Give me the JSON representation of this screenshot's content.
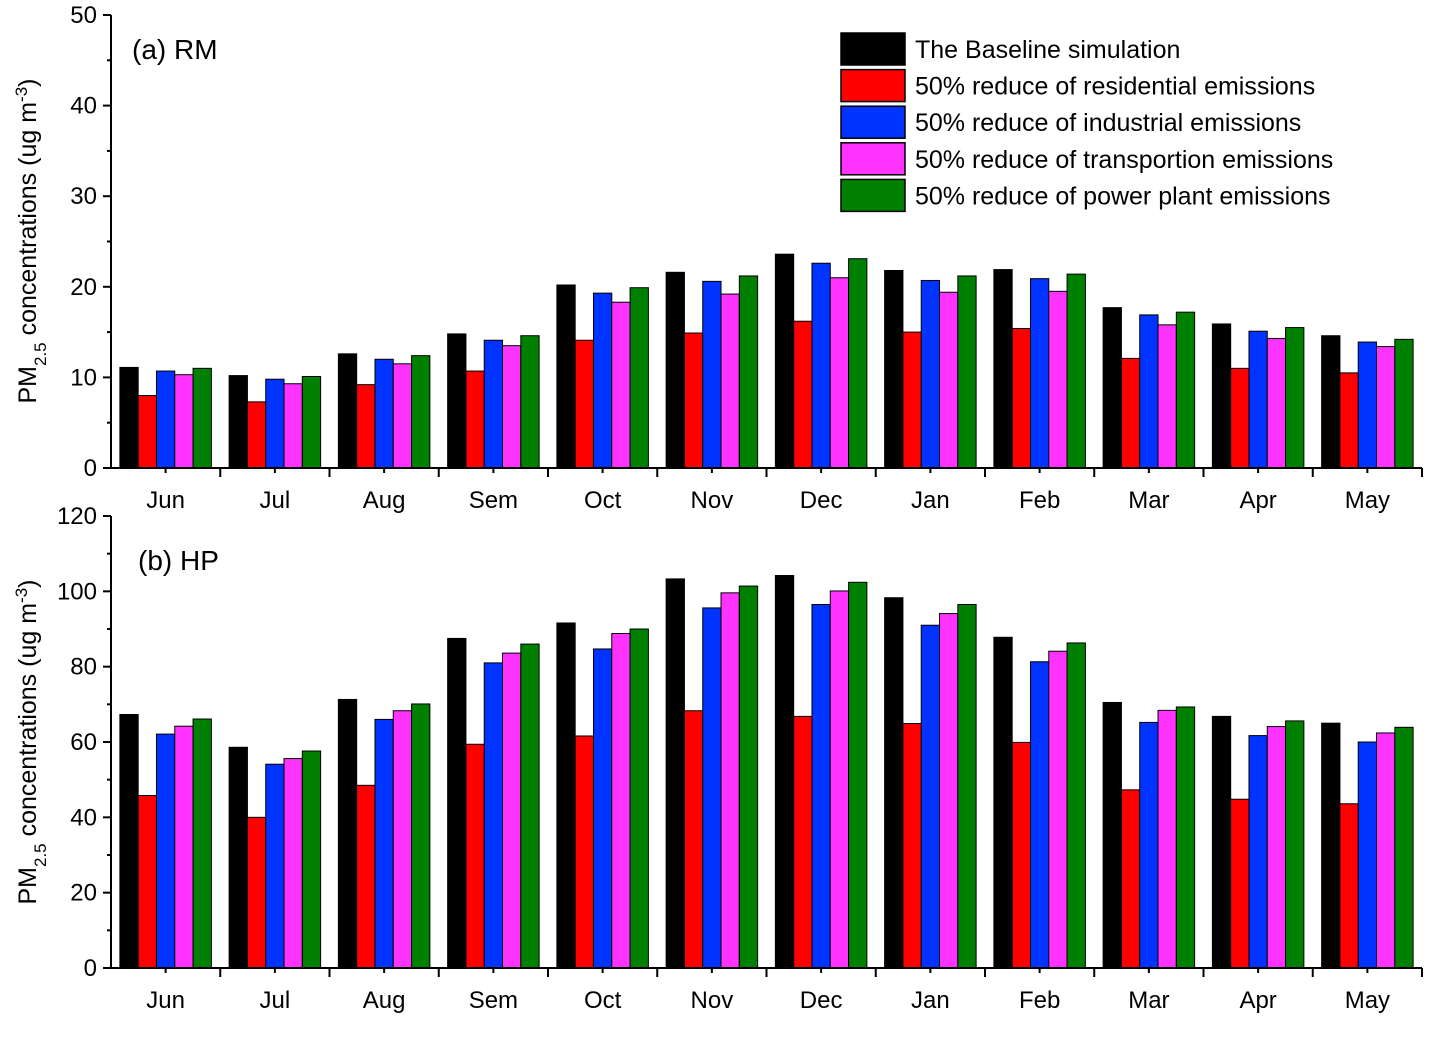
{
  "legend": {
    "entries": [
      {
        "label": "The Baseline simulation",
        "color": "#000000"
      },
      {
        "label": "50% reduce of residential emissions",
        "color": "#ff0000"
      },
      {
        "label": "50% reduce of industrial emissions",
        "color": "#0033ff"
      },
      {
        "label": "50% reduce of transportion emissions",
        "color": "#ff33ff"
      },
      {
        "label": "50% reduce of power plant emissions",
        "color": "#008000"
      }
    ],
    "placement": "top-right of panel (a)"
  },
  "chart_data": [
    {
      "type": "bar",
      "panel_label": "(a) RM",
      "ylabel": {
        "main": "PM",
        "sub": "2.5",
        "rest": " concentrations (ug m",
        "sup": "-3",
        "close": ")"
      },
      "xlabel": "",
      "ylim": [
        0,
        50
      ],
      "yticks": [
        0,
        10,
        20,
        30,
        40,
        50
      ],
      "categories": [
        "Jun",
        "Jul",
        "Aug",
        "Sem",
        "Oct",
        "Nov",
        "Dec",
        "Jan",
        "Feb",
        "Mar",
        "Apr",
        "May"
      ],
      "series": [
        {
          "name": "The Baseline simulation",
          "color": "#000000",
          "values": [
            11.1,
            10.2,
            12.6,
            14.8,
            20.2,
            21.6,
            23.6,
            21.8,
            21.9,
            17.7,
            15.9,
            14.6
          ]
        },
        {
          "name": "50% reduce of residential emissions",
          "color": "#ff0000",
          "values": [
            8.0,
            7.3,
            9.2,
            10.7,
            14.1,
            14.9,
            16.2,
            15.0,
            15.4,
            12.1,
            11.0,
            10.5
          ]
        },
        {
          "name": "50% reduce of industrial emissions",
          "color": "#0033ff",
          "values": [
            10.7,
            9.8,
            12.0,
            14.1,
            19.3,
            20.6,
            22.6,
            20.7,
            20.9,
            16.9,
            15.1,
            13.9
          ]
        },
        {
          "name": "50% reduce of transportion emissions",
          "color": "#ff33ff",
          "values": [
            10.3,
            9.3,
            11.5,
            13.5,
            18.3,
            19.2,
            21.0,
            19.4,
            19.5,
            15.8,
            14.3,
            13.4
          ]
        },
        {
          "name": "50% reduce of power plant emissions",
          "color": "#008000",
          "values": [
            11.0,
            10.1,
            12.4,
            14.6,
            19.9,
            21.2,
            23.1,
            21.2,
            21.4,
            17.2,
            15.5,
            14.2
          ]
        }
      ]
    },
    {
      "type": "bar",
      "panel_label": "(b) HP",
      "ylabel": {
        "main": "PM",
        "sub": "2.5",
        "rest": " concentrations (ug m",
        "sup": "-3",
        "close": ")"
      },
      "xlabel": "",
      "ylim": [
        0,
        120
      ],
      "yticks": [
        0,
        20,
        40,
        60,
        80,
        100,
        120
      ],
      "categories": [
        "Jun",
        "Jul",
        "Aug",
        "Sem",
        "Oct",
        "Nov",
        "Dec",
        "Jan",
        "Feb",
        "Mar",
        "Apr",
        "May"
      ],
      "series": [
        {
          "name": "The Baseline simulation",
          "color": "#000000",
          "values": [
            67.3,
            58.6,
            71.3,
            87.5,
            91.6,
            103.3,
            104.2,
            98.3,
            87.8,
            70.5,
            66.8,
            65.0
          ]
        },
        {
          "name": "50% reduce of residential emissions",
          "color": "#ff0000",
          "values": [
            45.8,
            40.0,
            48.5,
            59.4,
            61.6,
            68.3,
            66.8,
            64.9,
            59.9,
            47.3,
            44.8,
            43.6
          ]
        },
        {
          "name": "50% reduce of industrial emissions",
          "color": "#0033ff",
          "values": [
            62.1,
            54.1,
            66.0,
            81.0,
            84.7,
            95.6,
            96.5,
            91.0,
            81.3,
            65.2,
            61.7,
            60.0
          ]
        },
        {
          "name": "50% reduce of transportion emissions",
          "color": "#ff33ff",
          "values": [
            64.2,
            55.6,
            68.3,
            83.6,
            88.8,
            99.6,
            100.1,
            94.1,
            84.1,
            68.4,
            64.1,
            62.4
          ]
        },
        {
          "name": "50% reduce of power plant emissions",
          "color": "#008000",
          "values": [
            66.1,
            57.6,
            70.1,
            86.0,
            90.0,
            101.4,
            102.4,
            96.5,
            86.3,
            69.3,
            65.6,
            63.9
          ]
        }
      ]
    }
  ]
}
